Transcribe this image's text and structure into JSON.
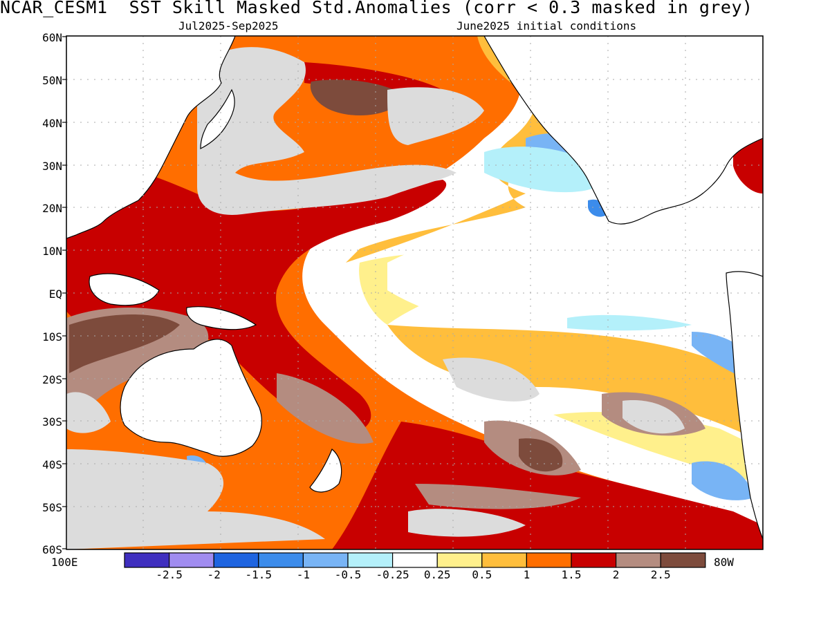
{
  "title": "NCAR_CESM1  SST Skill Masked Std.Anomalies (corr < 0.3 masked in grey)",
  "subtitle_left": "Jul2025-Sep2025",
  "subtitle_right": "June2025 initial conditions",
  "lat_labels": [
    "60N",
    "50N",
    "40N",
    "30N",
    "20N",
    "10N",
    "EQ",
    "10S",
    "20S",
    "30S",
    "40S",
    "50S",
    "60S"
  ],
  "lon_labels": {
    "west": "100E",
    "east": "80W"
  },
  "colorbar": {
    "colors": [
      "#3f2fbf",
      "#a08cf0",
      "#1e64e0",
      "#3c8ceb",
      "#78b4f5",
      "#b4f0fa",
      "#ffffff",
      "#fff08c",
      "#ffbe3c",
      "#ff6e00",
      "#c80000",
      "#b48c80",
      "#7d4b3c"
    ],
    "labels": [
      "-2.5",
      "-2",
      "-1.5",
      "-1",
      "-0.5",
      "-0.25",
      "0.25",
      "0.5",
      "1",
      "1.5",
      "2",
      "2.5"
    ]
  },
  "map_colors": {
    "mask_grey": "#dcdcdc",
    "land_white": "#ffffff",
    "coast": "#000000"
  }
}
